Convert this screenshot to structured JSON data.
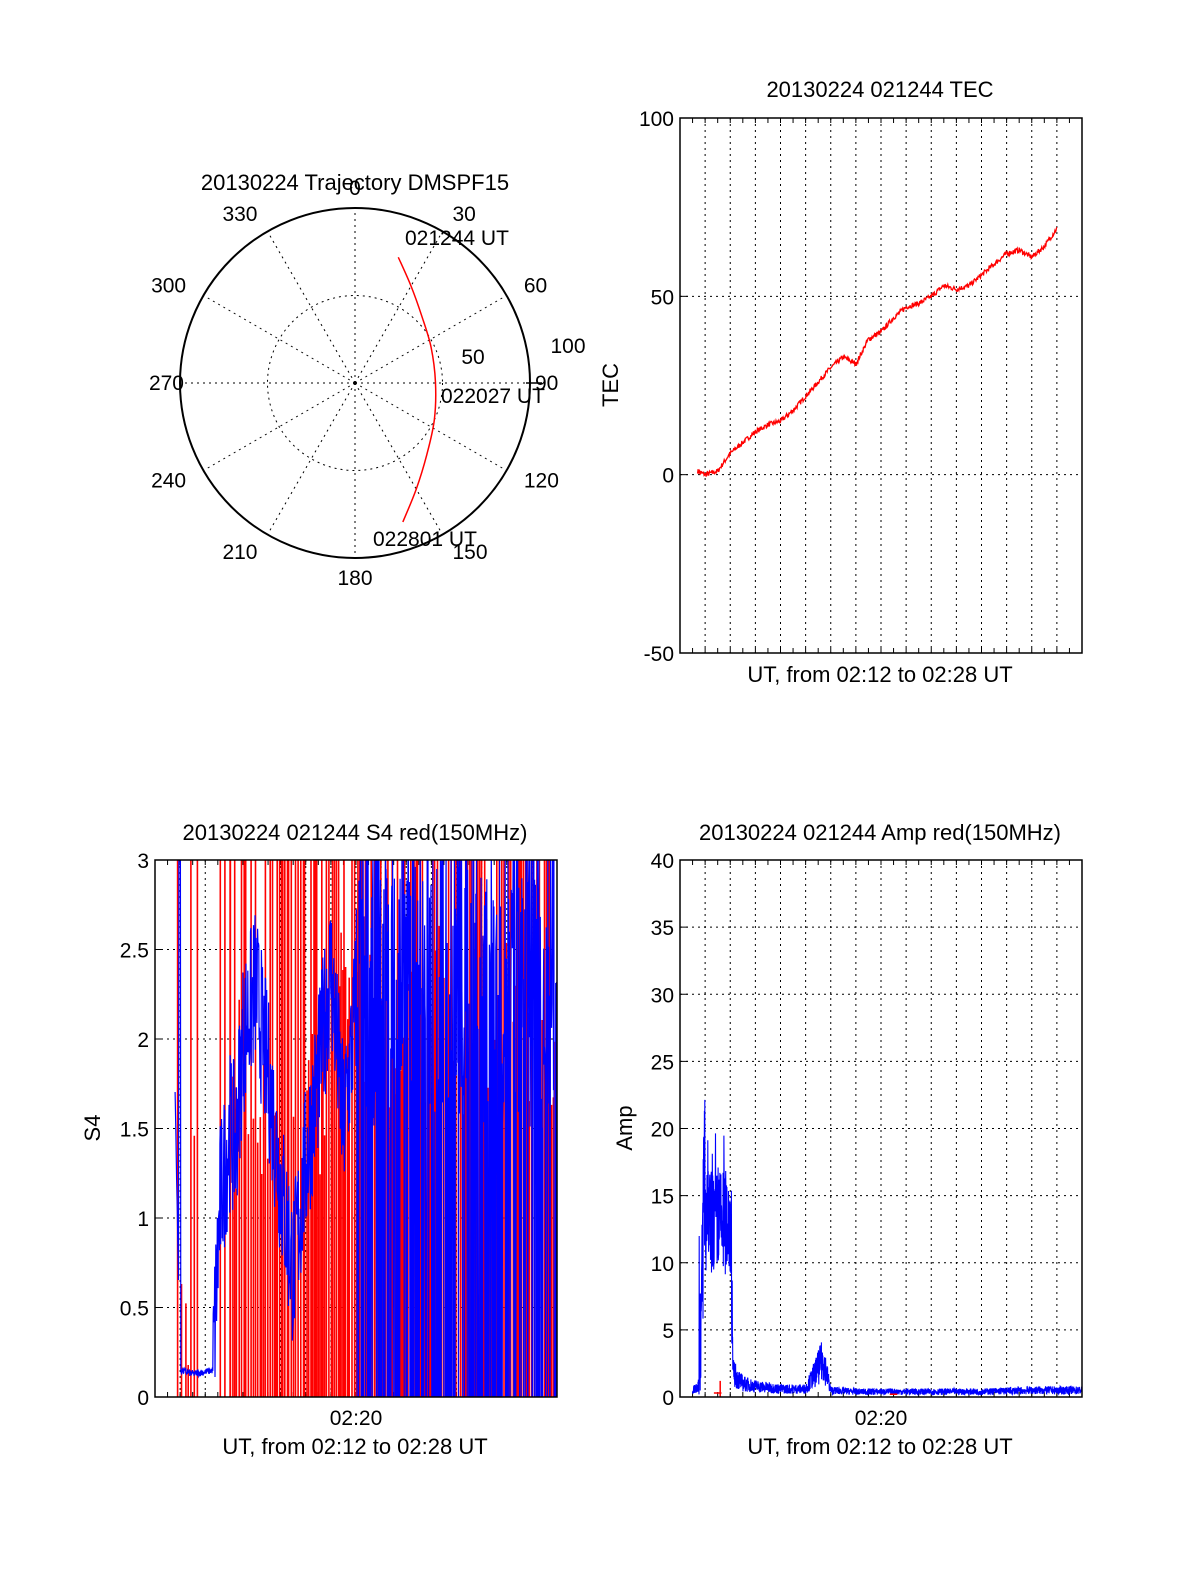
{
  "colors": {
    "red": "#ff0000",
    "blue": "#0000ff",
    "axis": "#000000",
    "background": "#ffffff"
  },
  "chart_data": [
    {
      "id": "trajectory",
      "type": "polar",
      "title": "20130224 Trajectory DMSPF15",
      "angle_ticks": [
        "0",
        "30",
        "60",
        "90",
        "120",
        "150",
        "180",
        "210",
        "240",
        "270",
        "300",
        "330"
      ],
      "radius_ticks": [
        "50",
        "100"
      ],
      "rlim": [
        0,
        100
      ],
      "grid": true,
      "annotations": [
        "021244 UT",
        "022027 UT",
        "022801 UT"
      ],
      "series": [
        {
          "color": "#ff0000",
          "points": [
            {
              "az": 19,
              "zen": 76,
              "time": "021244 UT"
            },
            {
              "az": 30,
              "zen": 64
            },
            {
              "az": 45,
              "zen": 54
            },
            {
              "az": 65,
              "zen": 48
            },
            {
              "az": 90,
              "zen": 46,
              "time": "022027 UT"
            },
            {
              "az": 115,
              "zen": 50
            },
            {
              "az": 135,
              "zen": 58
            },
            {
              "az": 150,
              "zen": 70
            },
            {
              "az": 161,
              "zen": 84,
              "time": "022801 UT"
            }
          ]
        }
      ]
    },
    {
      "id": "tec",
      "type": "line",
      "title": "20130224 021244 TEC",
      "xlabel": "UT, from 02:12 to 02:28 UT",
      "ylabel": "TEC",
      "ylim": [
        -50,
        100
      ],
      "yticks": [
        "100",
        "50",
        "0",
        "-50"
      ],
      "x_unit": "minutes after 02:12 UT",
      "grid": true,
      "series": [
        {
          "color": "#ff0000",
          "x": [
            0.7,
            1.0,
            1.5,
            2.0,
            2.5,
            3.0,
            3.5,
            4.0,
            4.5,
            5.0,
            5.5,
            6.0,
            6.5,
            7.0,
            7.5,
            8.0,
            8.5,
            9.0,
            9.5,
            10.0,
            10.5,
            11.0,
            11.5,
            12.0,
            12.5,
            13.0,
            13.5,
            14.0,
            14.5,
            15.0
          ],
          "y": [
            1,
            0,
            1,
            6,
            9,
            12,
            14,
            15,
            18,
            22,
            26,
            30,
            33,
            31,
            38,
            40,
            44,
            47,
            48,
            50,
            53,
            52,
            53,
            56,
            59,
            62,
            63,
            61,
            64,
            69
          ]
        }
      ]
    },
    {
      "id": "s4",
      "type": "line",
      "title": "20130224 021244 S4 red(150MHz)",
      "xlabel": "UT, from 02:12 to 02:28 UT",
      "ylabel": "S4",
      "ylim": [
        0,
        3
      ],
      "yticks": [
        "3",
        "2.5",
        "2",
        "1.5",
        "1",
        "0.5",
        "0"
      ],
      "xticks": [
        "02:20"
      ],
      "x_unit": "minutes after 02:12 UT",
      "grid": true,
      "series": [
        {
          "color": "#0000ff",
          "x": [
            0.8,
            1.0,
            1.5,
            2.0,
            2.3,
            2.6,
            3.0,
            3.2,
            3.5,
            4.0,
            4.5,
            5.0,
            5.5,
            6.0,
            6.5,
            7.0,
            7.5,
            8.0
          ],
          "y": [
            1.7,
            0.15,
            0.13,
            0.14,
            0.15,
            1.1,
            1.5,
            1.4,
            2.0,
            2.3,
            1.8,
            1.2,
            0.7,
            1.3,
            1.8,
            2.4,
            1.5,
            2.2
          ]
        },
        {
          "color": "#ff0000",
          "x": [
            1.0,
            2.0,
            3.0,
            4.0,
            5.0,
            6.0,
            7.0,
            8.0
          ],
          "y": [
            0.0,
            0.5,
            1.0,
            1.5,
            0.3,
            0.8,
            1.5,
            1.5
          ]
        }
      ]
    },
    {
      "id": "amp",
      "type": "line",
      "title": "20130224 021244 Amp red(150MHz)",
      "xlabel": "UT, from 02:12 to 02:28 UT",
      "ylabel": "Amp",
      "ylim": [
        0,
        40
      ],
      "yticks": [
        "40",
        "35",
        "30",
        "25",
        "20",
        "15",
        "10",
        "5",
        "0"
      ],
      "xticks": [
        "02:20"
      ],
      "x_unit": "minutes after 02:12 UT",
      "grid": true,
      "series": [
        {
          "color": "#0000ff",
          "x": [
            0.5,
            0.8,
            1.0,
            1.5,
            2.0,
            2.1,
            2.5,
            3.0,
            4.0,
            5.0,
            5.7,
            6.0,
            7.0,
            8.0,
            10.0,
            12.0,
            14.0,
            16.0
          ],
          "y": [
            0.5,
            1.0,
            20.5,
            19.5,
            20.0,
            1.8,
            1.0,
            0.8,
            0.6,
            0.6,
            2.8,
            0.5,
            0.4,
            0.4,
            0.4,
            0.4,
            0.5,
            0.5
          ]
        },
        {
          "color": "#ff0000",
          "x": [
            1.5,
            8.5
          ],
          "y": [
            0.3,
            0.2
          ]
        }
      ]
    }
  ]
}
